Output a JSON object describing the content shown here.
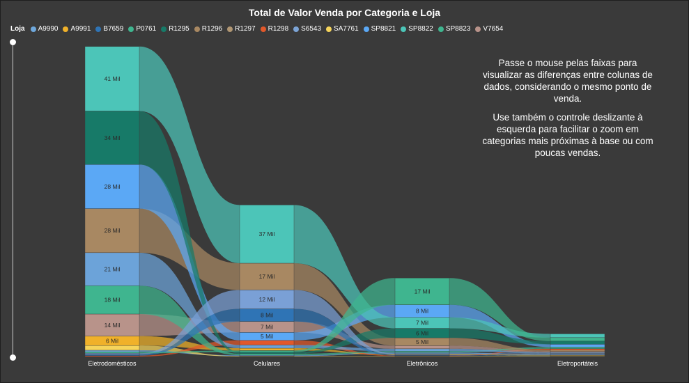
{
  "title": "Total de Valor Venda por Categoria e Loja",
  "legend": {
    "title": "Loja",
    "items": [
      {
        "name": "A9990",
        "color": "#6fa8dc"
      },
      {
        "name": "A9991",
        "color": "#f0b12a"
      },
      {
        "name": "B7659",
        "color": "#2f74b5"
      },
      {
        "name": "P0761",
        "color": "#3fb58f"
      },
      {
        "name": "R1295",
        "color": "#177a68"
      },
      {
        "name": "R1296",
        "color": "#a88862"
      },
      {
        "name": "R1297",
        "color": "#b09673"
      },
      {
        "name": "R1298",
        "color": "#e2582a"
      },
      {
        "name": "S6543",
        "color": "#7ca4d6"
      },
      {
        "name": "SA7761",
        "color": "#f5d45b"
      },
      {
        "name": "SP8821",
        "color": "#5ba8f5"
      },
      {
        "name": "SP8822",
        "color": "#4cc5b8"
      },
      {
        "name": "SP8823",
        "color": "#3fb58f"
      },
      {
        "name": "V7654",
        "color": "#b8938a"
      }
    ]
  },
  "note": {
    "p1": "Passe o mouse pelas faixas para visualizar as diferenças entre colunas de dados, considerando o mesmo ponto de venda.",
    "p2": "Use também o controle deslizante à esquerda para facilitar o zoom em categorias mais próximas à base ou com poucas vendas."
  },
  "chart_data": {
    "type": "ribbon",
    "title": "Total de Valor Venda por Categoria e Loja",
    "categories": [
      "Eletrodomésticos",
      "Celulares",
      "Eletrônicos",
      "Eletroportáteis"
    ],
    "ylim": [
      0,
      200000
    ],
    "series": [
      {
        "name": "A9990",
        "color": "#6fa8dc",
        "values": [
          1000,
          500,
          700,
          500
        ],
        "labels": [
          "",
          "",
          "",
          ""
        ]
      },
      {
        "name": "A9991",
        "color": "#f0b12a",
        "values": [
          6000,
          1500,
          400,
          400
        ],
        "labels": [
          "6 Mil",
          "",
          "",
          ""
        ]
      },
      {
        "name": "SA7761",
        "color": "#f5d45b",
        "values": [
          3000,
          300,
          300,
          300
        ],
        "labels": [
          "",
          "",
          "",
          ""
        ]
      },
      {
        "name": "R1298",
        "color": "#e2582a",
        "values": [
          600,
          3000,
          300,
          900
        ],
        "labels": [
          "",
          "",
          "",
          ""
        ]
      },
      {
        "name": "V7654",
        "color": "#b8938a",
        "values": [
          14000,
          7000,
          2000,
          700
        ],
        "labels": [
          "14 Mil",
          "7 Mil",
          "",
          ""
        ]
      },
      {
        "name": "P0761",
        "color": "#3fb58f",
        "values": [
          18000,
          1000,
          800,
          1000
        ],
        "labels": [
          "18 Mil",
          "",
          "",
          ""
        ]
      },
      {
        "name": "S6543",
        "color": "#6ca3d9",
        "values": [
          21000,
          2000,
          1500,
          600
        ],
        "labels": [
          "21 Mil",
          "",
          "",
          ""
        ]
      },
      {
        "name": "R1296",
        "color": "#a88862",
        "values": [
          28000,
          17000,
          5000,
          800
        ],
        "labels": [
          "28 Mil",
          "17 Mil",
          "5 Mil",
          ""
        ]
      },
      {
        "name": "SP8821",
        "color": "#5ba8f5",
        "values": [
          28000,
          5000,
          8000,
          1800
        ],
        "labels": [
          "28 Mil",
          "5 Mil",
          "8 Mil",
          ""
        ]
      },
      {
        "name": "R1295",
        "color": "#177a68",
        "values": [
          34000,
          1000,
          6000,
          2000
        ],
        "labels": [
          "34 Mil",
          "",
          "6 Mil",
          ""
        ]
      },
      {
        "name": "SP8822",
        "color": "#4cc5b8",
        "values": [
          41000,
          37000,
          7000,
          2400
        ],
        "labels": [
          "41 Mil",
          "37 Mil",
          "7 Mil",
          ""
        ]
      },
      {
        "name": "B7659",
        "color": "#2f74b5",
        "values": [
          700,
          8000,
          300,
          300
        ],
        "labels": [
          "",
          "8 Mil",
          "",
          ""
        ]
      },
      {
        "name": "R1297",
        "color": "#7aa0d6",
        "values": [
          800,
          12000,
          600,
          500
        ],
        "labels": [
          "",
          "12 Mil",
          "",
          ""
        ]
      },
      {
        "name": "SP8823",
        "color": "#3fb58f",
        "values": [
          900,
          1000,
          17000,
          2200
        ],
        "labels": [
          "",
          "",
          "17 Mil",
          ""
        ]
      }
    ]
  }
}
